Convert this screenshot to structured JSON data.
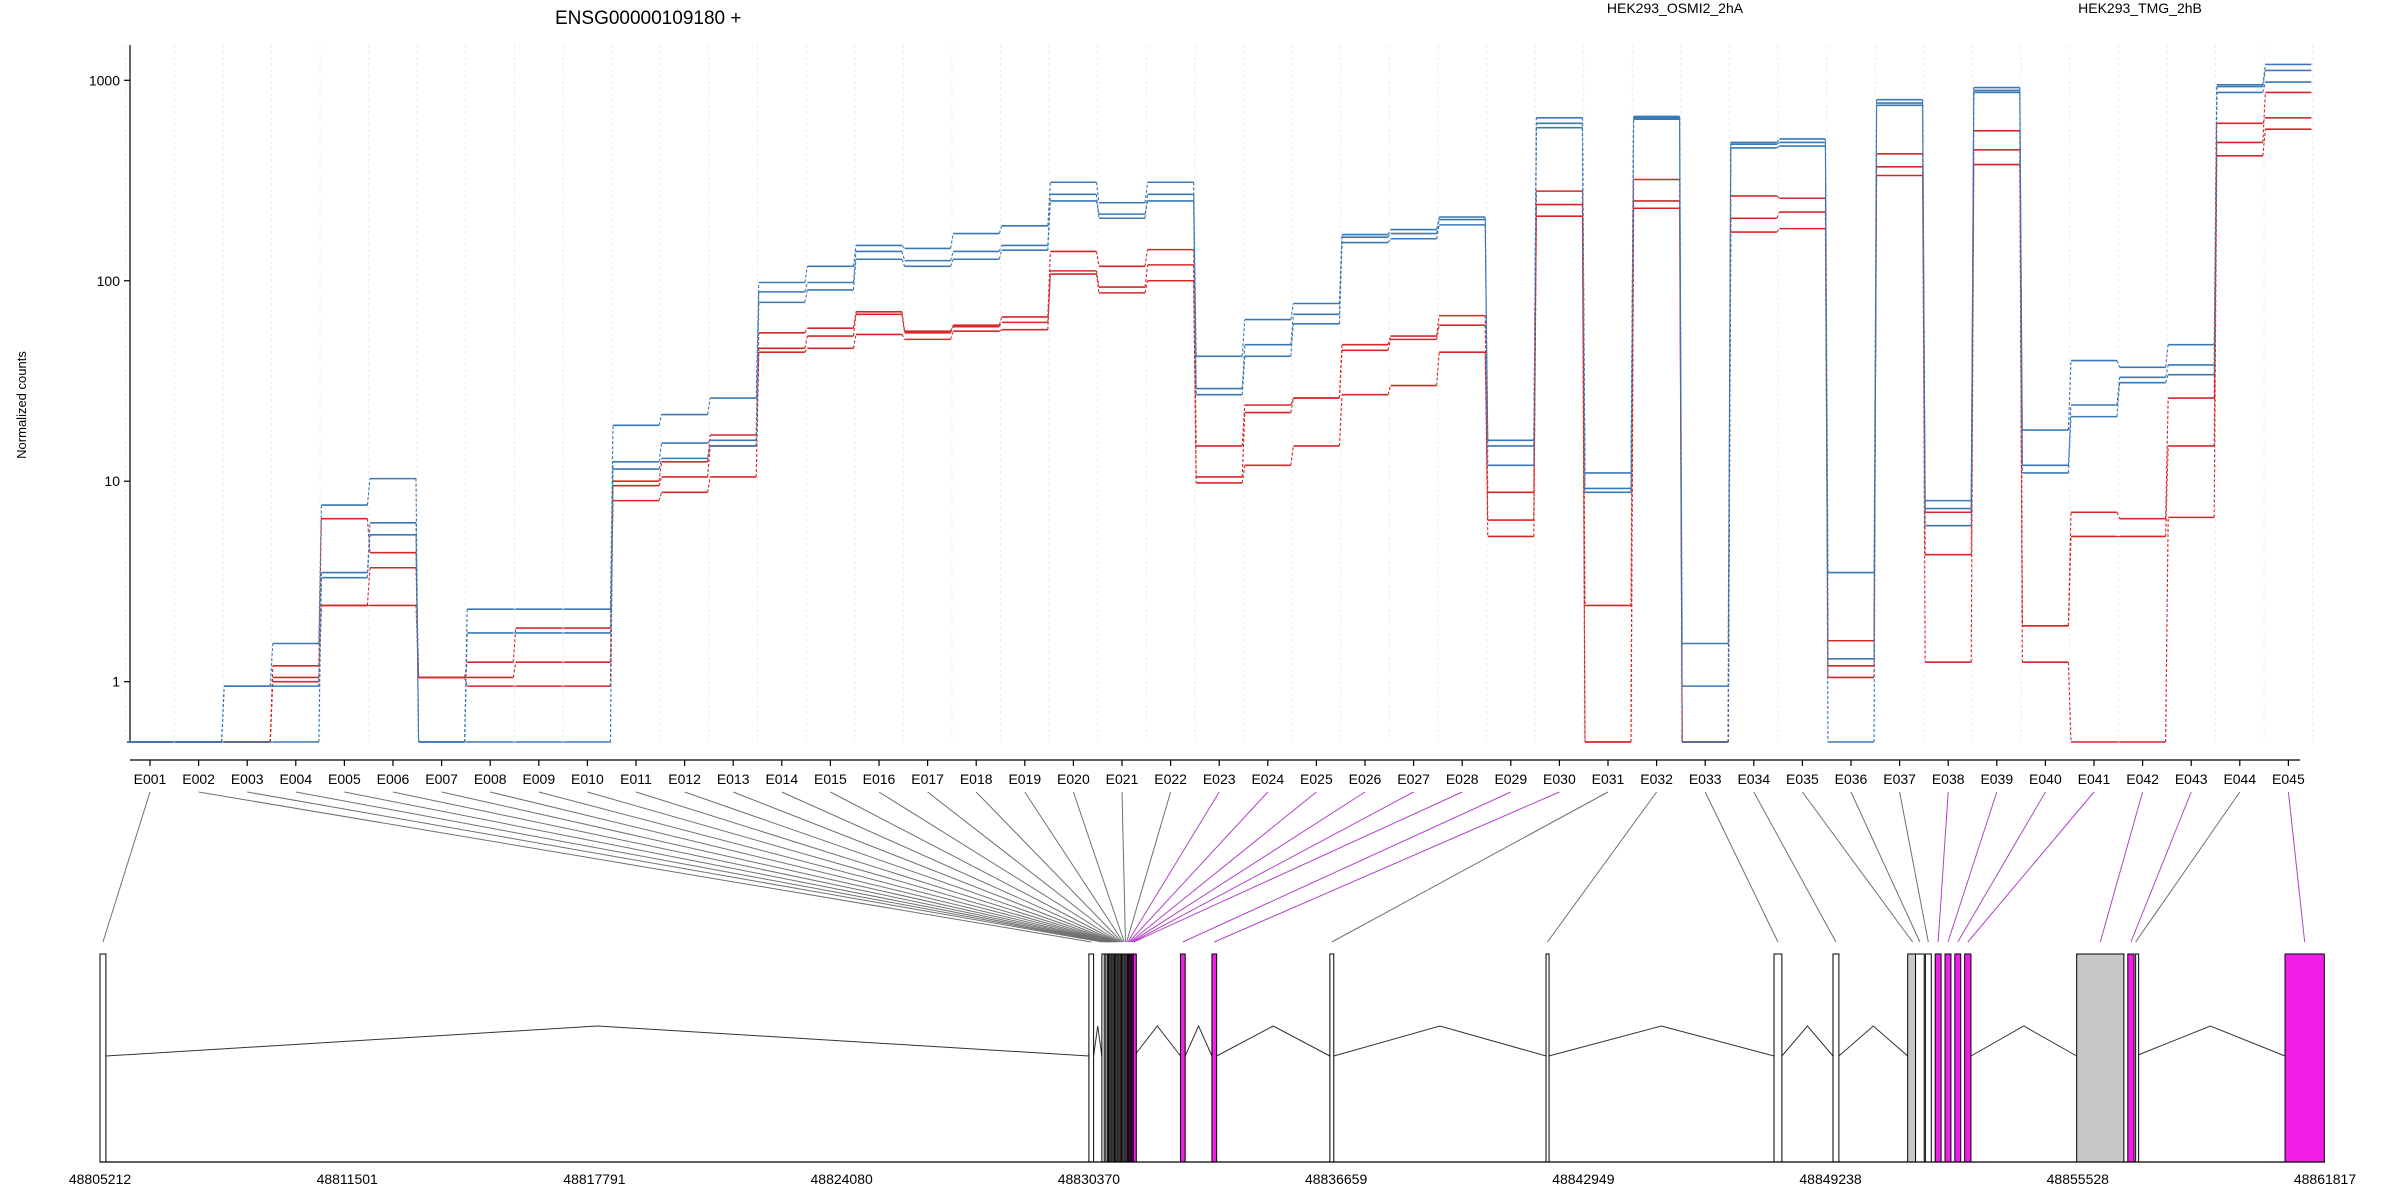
{
  "chart_data": {
    "type": "line",
    "title": "ENSG00000109180 +",
    "ylabel": "Normalized counts",
    "xlabel": "",
    "yscale": "log",
    "ylim": [
      0.5,
      1500
    ],
    "grid": true,
    "legend": {
      "position": "top"
    },
    "y_ticks": [
      "1",
      "10",
      "100",
      "1000"
    ],
    "y_tick_values": [
      1,
      10,
      100,
      1000
    ],
    "categories": [
      "E001",
      "E002",
      "E003",
      "E004",
      "E005",
      "E006",
      "E007",
      "E008",
      "E009",
      "E010",
      "E011",
      "E012",
      "E013",
      "E014",
      "E015",
      "E016",
      "E017",
      "E018",
      "E019",
      "E020",
      "E021",
      "E022",
      "E023",
      "E024",
      "E025",
      "E026",
      "E027",
      "E028",
      "E029",
      "E030",
      "E031",
      "E032",
      "E033",
      "E034",
      "E035",
      "E036",
      "E037",
      "E038",
      "E039",
      "E040",
      "E041",
      "E042",
      "E043",
      "E044",
      "E045"
    ],
    "colors": {
      "HEK293_OSMI2_2hA": "#d62728",
      "HEK293_TMG_2hB": "#3a78b5",
      "highlight": "#f01ee6",
      "gray": "#c8c8c8"
    },
    "series": [
      {
        "name": "HEK293_OSMI2_2hA",
        "color": "#d62728",
        "values": [
          0.5,
          0.5,
          0.5,
          1.2,
          6.5,
          4.4,
          1.05,
          1.25,
          1.85,
          1.85,
          10,
          12.5,
          17,
          55,
          58,
          70,
          56,
          60,
          66,
          140,
          118,
          143,
          15,
          24,
          26,
          48,
          53,
          67,
          8.8,
          280,
          2.4,
          320,
          0.5,
          265,
          258,
          1.6,
          430,
          7,
          560,
          1.9,
          7,
          6.5,
          26,
          610,
          650
        ]
      },
      {
        "name": "HEK293_OSMI2_2hA",
        "color": "#d62728",
        "values": [
          0.5,
          0.5,
          0.5,
          1.05,
          2.4,
          2.4,
          1.05,
          1.05,
          1.25,
          1.25,
          8,
          8.8,
          10.5,
          44,
          46,
          54,
          51,
          56,
          57,
          108,
          87,
          100,
          9.8,
          12,
          15,
          27,
          30,
          44,
          5.3,
          210,
          0.5,
          230,
          0.5,
          175,
          182,
          1.05,
          335,
          1.25,
          380,
          1.25,
          0.5,
          0.5,
          6.6,
          420,
          570
        ]
      },
      {
        "name": "HEK293_OSMI2_2hA",
        "color": "#d62728",
        "values": [
          0.5,
          0.5,
          0.5,
          1.0,
          2.4,
          3.7,
          1.05,
          0.95,
          0.95,
          0.95,
          9.5,
          10.5,
          15,
          46,
          53,
          68,
          55,
          59,
          62,
          112,
          93,
          120,
          10.5,
          22,
          26,
          45,
          51,
          60,
          6.4,
          240,
          0.5,
          250,
          0.5,
          205,
          220,
          1.2,
          370,
          4.3,
          450,
          1.9,
          5.3,
          5.3,
          15,
          490,
          870
        ]
      },
      {
        "name": "HEK293_TMG_2hB",
        "color": "#3a78b5",
        "values": [
          0.5,
          0.5,
          0.95,
          1.55,
          7.6,
          10.3,
          0.5,
          2.3,
          2.3,
          2.3,
          19,
          21.5,
          26,
          98,
          118,
          150,
          145,
          172,
          188,
          310,
          245,
          310,
          42,
          64,
          77,
          170,
          180,
          208,
          16,
          650,
          11,
          660,
          1.55,
          490,
          510,
          3.5,
          800,
          8,
          920,
          18,
          40,
          37,
          48,
          950,
          1200
        ]
      },
      {
        "name": "HEK293_TMG_2hB",
        "color": "#3a78b5",
        "values": [
          0.5,
          0.5,
          0.95,
          0.95,
          3.5,
          6.2,
          0.5,
          1.75,
          1.75,
          1.75,
          12.5,
          15.5,
          16,
          88,
          98,
          140,
          126,
          140,
          150,
          270,
          205,
          270,
          29,
          48,
          68,
          165,
          172,
          202,
          12,
          610,
          9.2,
          650,
          0.95,
          480,
          490,
          1.3,
          770,
          7.3,
          890,
          12,
          24,
          33,
          38,
          930,
          1120
        ]
      },
      {
        "name": "HEK293_TMG_2hB",
        "color": "#3a78b5",
        "values": [
          0.5,
          0.5,
          0.5,
          0.5,
          3.3,
          5.4,
          0.5,
          0.5,
          0.5,
          0.5,
          11.5,
          13,
          15,
          78,
          90,
          128,
          118,
          128,
          142,
          250,
          215,
          250,
          27,
          42,
          61,
          155,
          162,
          190,
          15,
          580,
          8.8,
          640,
          0.5,
          460,
          470,
          0.5,
          750,
          6,
          870,
          11,
          21,
          31,
          34,
          870,
          980
        ]
      }
    ],
    "genomic_ticks": [
      "48805212",
      "48811501",
      "48817791",
      "48824080",
      "48830370",
      "48836659",
      "48842949",
      "48849238",
      "48855528",
      "48861817"
    ]
  }
}
